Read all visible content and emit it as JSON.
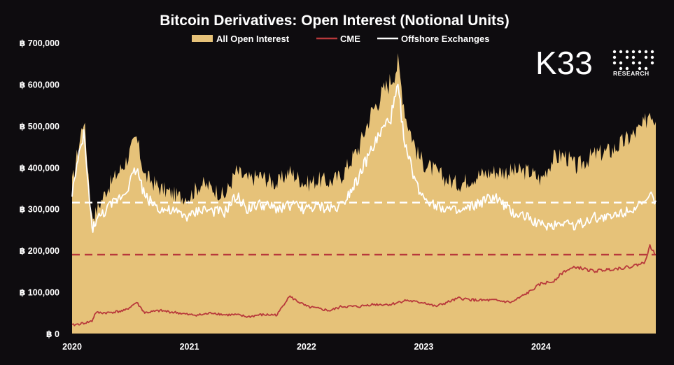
{
  "chart_data": {
    "type": "area",
    "title": "Bitcoin Derivatives: Open Interest (Notional Units)",
    "legend": {
      "position": "top-center",
      "entries": [
        {
          "name": "All Open Interest",
          "style": "area",
          "color": "#e6c279"
        },
        {
          "name": "CME",
          "style": "line",
          "color": "#b8393b"
        },
        {
          "name": "Offshore Exchanges",
          "style": "line",
          "color": "#ffffff"
        }
      ]
    },
    "x": [
      2020.0,
      2020.1,
      2020.17,
      2020.2,
      2020.3,
      2020.45,
      2020.55,
      2020.62,
      2020.75,
      2020.9,
      2021.0,
      2021.1,
      2021.2,
      2021.3,
      2021.4,
      2021.5,
      2021.6,
      2021.75,
      2021.85,
      2022.0,
      2022.1,
      2022.2,
      2022.3,
      2022.45,
      2022.55,
      2022.65,
      2022.72,
      2022.78,
      2022.85,
      2022.95,
      2023.0,
      2023.1,
      2023.2,
      2023.3,
      2023.45,
      2023.6,
      2023.75,
      2023.9,
      2024.0,
      2024.1,
      2024.2,
      2024.3,
      2024.45,
      2024.6,
      2024.75,
      2024.88,
      2024.93,
      2024.98
    ],
    "series": [
      {
        "name": "All Open Interest",
        "type": "area",
        "values": [
          360000,
          520000,
          280000,
          290000,
          350000,
          410000,
          470000,
          380000,
          350000,
          330000,
          330000,
          360000,
          350000,
          330000,
          390000,
          370000,
          380000,
          360000,
          390000,
          360000,
          370000,
          365000,
          380000,
          450000,
          530000,
          580000,
          610000,
          650000,
          520000,
          430000,
          410000,
          390000,
          370000,
          360000,
          380000,
          390000,
          390000,
          390000,
          370000,
          420000,
          430000,
          400000,
          430000,
          440000,
          470000,
          500000,
          540000,
          510000
        ]
      },
      {
        "name": "CME",
        "type": "line",
        "values": [
          20000,
          25000,
          30000,
          50000,
          50000,
          55000,
          75000,
          50000,
          55000,
          50000,
          45000,
          45000,
          50000,
          45000,
          45000,
          40000,
          45000,
          45000,
          90000,
          65000,
          60000,
          55000,
          65000,
          65000,
          70000,
          70000,
          70000,
          75000,
          80000,
          75000,
          75000,
          65000,
          75000,
          85000,
          80000,
          80000,
          75000,
          100000,
          120000,
          125000,
          150000,
          160000,
          150000,
          155000,
          160000,
          170000,
          210000,
          190000
        ]
      },
      {
        "name": "Offshore Exchanges",
        "type": "line",
        "values": [
          340000,
          480000,
          250000,
          270000,
          300000,
          340000,
          400000,
          330000,
          300000,
          290000,
          280000,
          300000,
          295000,
          290000,
          330000,
          300000,
          310000,
          300000,
          310000,
          300000,
          305000,
          300000,
          310000,
          380000,
          440000,
          490000,
          520000,
          590000,
          440000,
          350000,
          330000,
          310000,
          300000,
          290000,
          310000,
          330000,
          290000,
          280000,
          260000,
          260000,
          270000,
          260000,
          280000,
          280000,
          300000,
          310000,
          330000,
          320000
        ]
      }
    ],
    "reference_lines": [
      {
        "series": "Offshore Exchanges",
        "value": 315000,
        "style": "dashed",
        "color": "#ffffff"
      },
      {
        "series": "CME",
        "value": 190000,
        "style": "dashed",
        "color": "#b8393b"
      }
    ],
    "x_ticks": [
      2020,
      2021,
      2022,
      2023,
      2024
    ],
    "x_tick_labels": [
      "2020",
      "2021",
      "2022",
      "2023",
      "2024"
    ],
    "y_ticks": [
      0,
      100000,
      200000,
      300000,
      400000,
      500000,
      600000,
      700000
    ],
    "y_tick_labels": [
      "฿ 0",
      "฿ 100,000",
      "฿ 200,000",
      "฿ 300,000",
      "฿ 400,000",
      "฿ 500,000",
      "฿ 600,000",
      "฿ 700,000"
    ],
    "xlim": [
      2020.0,
      2024.98
    ],
    "ylim": [
      0,
      700000
    ],
    "grid": false
  },
  "branding": {
    "logo_text": "K33",
    "logo_subtext": "RESEARCH"
  },
  "colors": {
    "background": "#0e0c0f",
    "area": "#e6c279",
    "cme": "#b8393b",
    "offshore": "#ffffff"
  }
}
